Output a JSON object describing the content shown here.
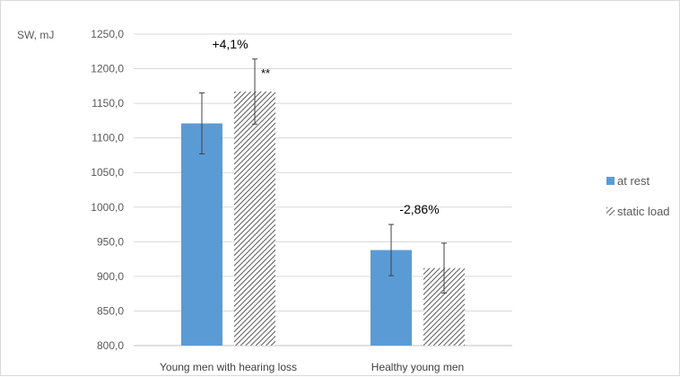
{
  "chart_data": {
    "type": "bar",
    "ylabel": "SW, mJ",
    "ylim": [
      800,
      1250
    ],
    "yticks": [
      "800,0",
      "850,0",
      "900,0",
      "950,0",
      "1000,0",
      "1050,0",
      "1100,0",
      "1150,0",
      "1200,0",
      "1250,0"
    ],
    "grid": true,
    "legend_position": "right",
    "categories": [
      "Young men  with hearing loss",
      "Healthy young men"
    ],
    "series": [
      {
        "name": "at rest",
        "pattern": "solid",
        "color": "#5b9bd5",
        "values": [
          1121,
          938
        ],
        "error": [
          44,
          37
        ]
      },
      {
        "name": "static load",
        "pattern": "diagonal-hatch",
        "color": "#595959",
        "values": [
          1167,
          912
        ],
        "error": [
          47,
          36
        ]
      }
    ],
    "annotations": [
      {
        "category": 0,
        "text": "+4,1%"
      },
      {
        "category": 1,
        "text": "-2,86%"
      }
    ],
    "significance": [
      {
        "category": 0,
        "series": 1,
        "text": "**"
      }
    ]
  }
}
